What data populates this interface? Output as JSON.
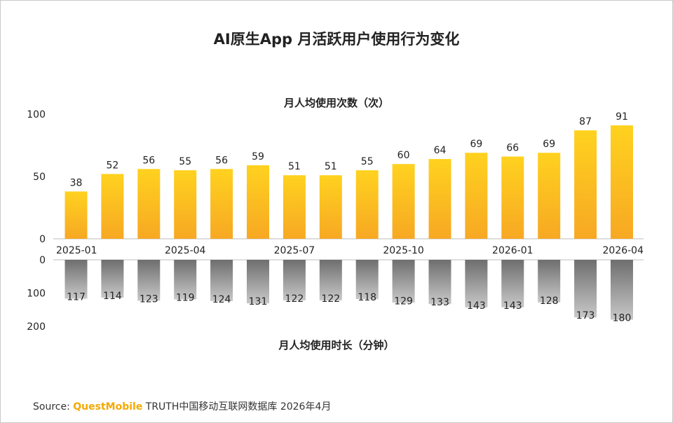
{
  "title": "AI原生App 月活跃用户使用行为变化",
  "source": {
    "label": "Source:",
    "brand": "QuestMobile",
    "text": "TRUTH中国移动互联网数据库 2026年4月"
  },
  "colors": {
    "bar_top_gold_start": "#ffd21f",
    "bar_top_gold_end": "#f7a823",
    "bar_bottom_gray_start": "#6e6e6e",
    "bar_bottom_gray_end": "#c8c8c8",
    "brand_orange": "#f5a800"
  },
  "chart_data": [
    {
      "type": "bar",
      "subtitle": "月人均使用次数（次）",
      "categories": [
        "2025-01",
        "2025-02",
        "2025-03",
        "2025-04",
        "2025-05",
        "2025-06",
        "2025-07",
        "2025-08",
        "2025-09",
        "2025-10",
        "2025-11",
        "2025-12",
        "2026-01",
        "2026-02",
        "2026-03",
        "2026-04"
      ],
      "tick_labels": [
        "2025-01",
        "",
        "",
        "2025-04",
        "",
        "",
        "2025-07",
        "",
        "",
        "2025-10",
        "",
        "",
        "2026-01",
        "",
        "",
        "2026-04"
      ],
      "values": [
        38,
        52,
        56,
        55,
        56,
        59,
        51,
        51,
        55,
        60,
        64,
        69,
        66,
        69,
        87,
        91
      ],
      "ylim": [
        0,
        100
      ],
      "yticks": [
        0,
        50,
        100
      ],
      "data_labels": true,
      "grid": false
    },
    {
      "type": "bar",
      "subtitle": "月人均使用时长（分钟）",
      "categories": [
        "2025-01",
        "2025-02",
        "2025-03",
        "2025-04",
        "2025-05",
        "2025-06",
        "2025-07",
        "2025-08",
        "2025-09",
        "2025-10",
        "2025-11",
        "2025-12",
        "2026-01",
        "2026-02",
        "2026-03",
        "2026-04"
      ],
      "values": [
        117,
        114,
        123,
        119,
        124,
        131,
        122,
        122,
        118,
        129,
        133,
        143,
        143,
        128,
        173,
        180
      ],
      "ylim": [
        0,
        200
      ],
      "yticks": [
        0,
        100,
        200
      ],
      "orientation": "downward",
      "data_labels": true,
      "grid": false
    }
  ]
}
